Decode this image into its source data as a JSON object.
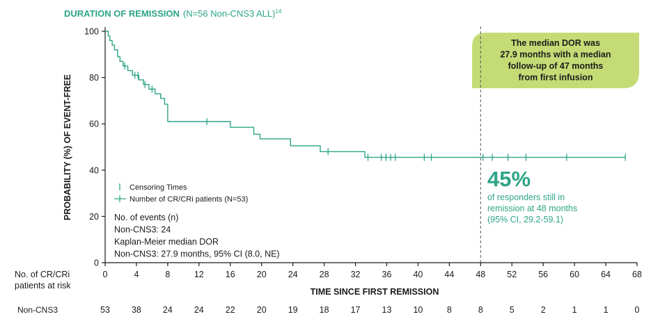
{
  "chart_data": {
    "type": "line",
    "title": "DURATION OF REMISSION",
    "title_suffix": "(N=56 Non-CNS3 ALL)",
    "title_superscript": "14",
    "xlabel": "TIME SINCE FIRST REMISSION",
    "ylabel": "PROBABILITY (%) OF EVENT-FREE",
    "xlim": [
      0,
      68
    ],
    "ylim": [
      0,
      100
    ],
    "xticks": [
      0,
      4,
      8,
      12,
      16,
      20,
      24,
      28,
      32,
      36,
      40,
      44,
      48,
      52,
      56,
      60,
      64,
      68
    ],
    "yticks": [
      0,
      20,
      40,
      60,
      80,
      100
    ],
    "grid": false,
    "line_color": "#2ea487",
    "series": [
      {
        "name": "Number of CR/CRi patients (N=53)",
        "step_points": [
          [
            0,
            100
          ],
          [
            0.4,
            98
          ],
          [
            0.6,
            96
          ],
          [
            0.9,
            94
          ],
          [
            1.2,
            92
          ],
          [
            1.6,
            89
          ],
          [
            1.9,
            87
          ],
          [
            2.3,
            85
          ],
          [
            2.9,
            83
          ],
          [
            3.5,
            81
          ],
          [
            4.3,
            79
          ],
          [
            4.9,
            77
          ],
          [
            5.6,
            75
          ],
          [
            6.4,
            73
          ],
          [
            7.1,
            71
          ],
          [
            7.6,
            68.5
          ],
          [
            8.0,
            61
          ],
          [
            16.0,
            58.5
          ],
          [
            19.0,
            55.5
          ],
          [
            19.8,
            53.5
          ],
          [
            23.7,
            50.5
          ],
          [
            27.5,
            48
          ],
          [
            33.2,
            45.5
          ],
          [
            66.5,
            45.5
          ]
        ],
        "censor_times": [
          2.5,
          3.8,
          4.2,
          5.1,
          6.0,
          13.0,
          28.5,
          33.6,
          35.3,
          35.9,
          36.5,
          37.1,
          40.8,
          41.7,
          48.3,
          49.5,
          51.5,
          53.8,
          59.0,
          66.5
        ]
      }
    ],
    "median_reference_x": 48,
    "legend": {
      "censor_label": "Censoring Times",
      "line_label": "Number of CR/CRi patients (N=53)",
      "placement": "bottom-left"
    },
    "stats_text": [
      "No. of events (n)",
      "Non-CNS3: 24",
      "Kaplan-Meier median DOR",
      "Non-CNS3: 27.9 months, 95% CI (8.0, NE)"
    ],
    "callout": {
      "lines": [
        "The median DOR was",
        "27.9 months with a median",
        "follow-up of 47 months",
        "from first infusion"
      ],
      "color": "#c5dc76"
    },
    "highlight": {
      "value": "45%",
      "lines": [
        "of responders still in",
        "remission at 48 months",
        "(95% CI, 29.2-59.1)"
      ]
    },
    "risk_table": {
      "header_lines": [
        "No. of CR/CRi",
        "patients at risk"
      ],
      "row_label": "Non-CNS3",
      "counts": [
        53,
        38,
        24,
        24,
        22,
        20,
        19,
        18,
        17,
        13,
        10,
        8,
        8,
        5,
        2,
        1,
        1,
        0
      ]
    }
  }
}
